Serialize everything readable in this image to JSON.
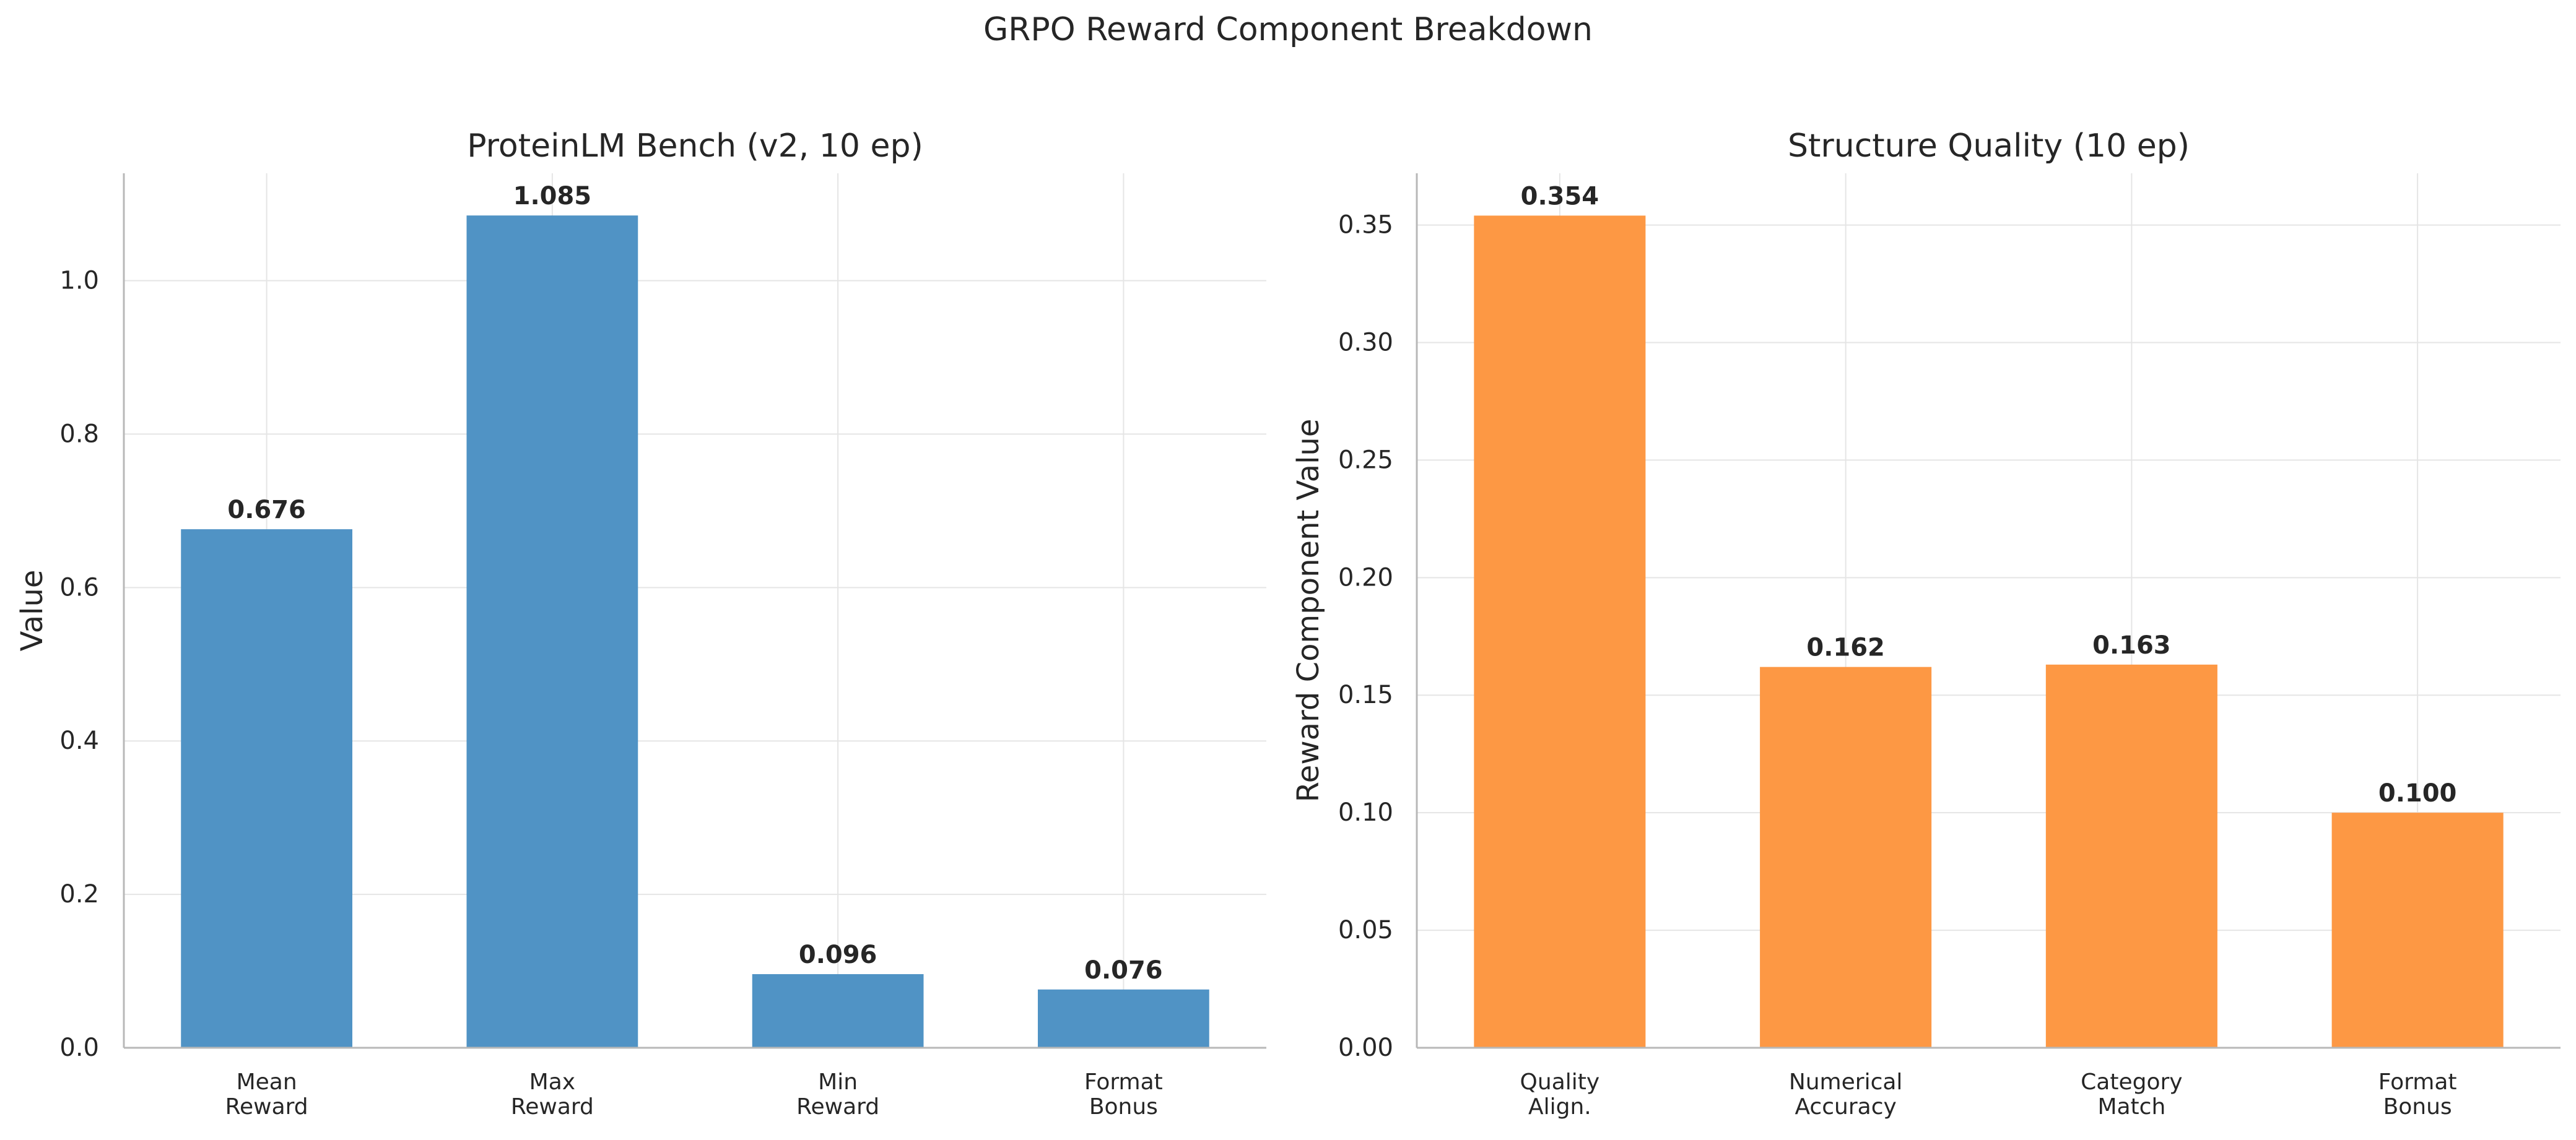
{
  "figure": {
    "suptitle": "GRPO Reward Component Breakdown"
  },
  "colors": {
    "left_bars": "#4a90c3",
    "right_bars": "#fd953e",
    "grid": "#e5e5e5",
    "axis": "#b8b8b8",
    "text": "#262626"
  },
  "chart_data": [
    {
      "type": "bar",
      "title": "ProteinLM Bench (v2, 10 ep)",
      "xlabel": "",
      "ylabel": "Value",
      "categories": [
        "Mean\nReward",
        "Max\nReward",
        "Min\nReward",
        "Format\nBonus"
      ],
      "values": [
        0.676,
        1.085,
        0.096,
        0.076
      ],
      "data_labels": [
        "0.676",
        "1.085",
        "0.096",
        "0.076"
      ],
      "ylim": [
        0,
        1.14
      ],
      "yticks": [
        0.0,
        0.2,
        0.4,
        0.6,
        0.8,
        1.0
      ],
      "ytick_labels": [
        "0.0",
        "0.2",
        "0.4",
        "0.6",
        "0.8",
        "1.0"
      ],
      "grid": true,
      "color": "#4a90c3"
    },
    {
      "type": "bar",
      "title": "Structure Quality (10 ep)",
      "xlabel": "",
      "ylabel": "Reward Component Value",
      "categories": [
        "Quality\nAlign.",
        "Numerical\nAccuracy",
        "Category\nMatch",
        "Format\nBonus"
      ],
      "values": [
        0.354,
        0.162,
        0.163,
        0.1
      ],
      "data_labels": [
        "0.354",
        "0.162",
        "0.163",
        "0.100"
      ],
      "ylim": [
        0,
        0.372
      ],
      "yticks": [
        0.0,
        0.05,
        0.1,
        0.15,
        0.2,
        0.25,
        0.3,
        0.35
      ],
      "ytick_labels": [
        "0.00",
        "0.05",
        "0.10",
        "0.15",
        "0.20",
        "0.25",
        "0.30",
        "0.35"
      ],
      "grid": true,
      "color": "#fd953e"
    }
  ]
}
